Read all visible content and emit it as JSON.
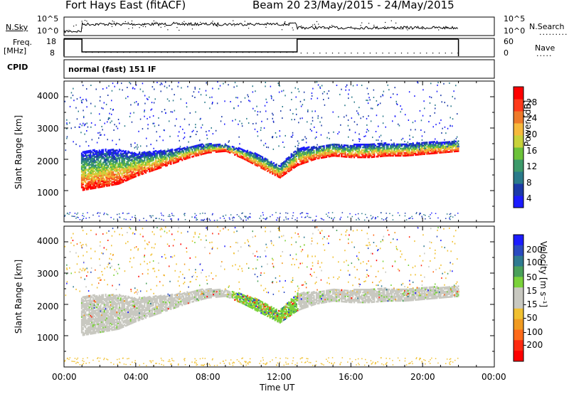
{
  "header": {
    "station": "Fort Hays East (fitACF)",
    "beam_date": "Beam 20  23/May/2015 - 24/May/2015"
  },
  "strips": {
    "nsky_label": "N.Sky",
    "nsky_ticks": [
      "10^5",
      "10^0"
    ],
    "nsearch_label": "N.Search",
    "nsearch_ticks": [
      "10^5",
      "10^0"
    ],
    "freq_label_1": "Freq.",
    "freq_label_2": "[MHz]",
    "freq_ticks": [
      "18",
      "8"
    ],
    "nave_label": "Nave",
    "nave_ticks": [
      "60",
      "0"
    ],
    "cpid_label": "CPID",
    "cpid_value": "normal (fast) 151 IF"
  },
  "panels": {
    "y_label": "Slant Range [km]",
    "y_ticks": [
      "4000",
      "3000",
      "2000",
      "1000"
    ],
    "x_ticks": [
      "00:00",
      "04:00",
      "08:00",
      "12:00",
      "16:00",
      "20:00",
      "00:00"
    ],
    "x_label": "Time UT"
  },
  "colorbars": {
    "power": {
      "label": "Power [dB]",
      "ticks": [
        "28",
        "24",
        "20",
        "16",
        "12",
        "8",
        "4"
      ],
      "colors": [
        "#1c1cff",
        "#1c3aa8",
        "#2a7a8a",
        "#3d9a6a",
        "#6cc23a",
        "#c8d23a",
        "#f6b93c",
        "#ee7a2a",
        "#ff3a1a",
        "#ff0000"
      ]
    },
    "velocity": {
      "label": "Velocity [m s⁻¹]",
      "ticks": [
        "200",
        "100",
        "50",
        "15",
        "-15",
        "-50",
        "-100",
        "-200"
      ],
      "colors": [
        "#1c1cff",
        "#2a4ac0",
        "#2f7a90",
        "#4aa05a",
        "#7ad23a",
        "#c8c8c0",
        "#c8c8c0",
        "#f0c030",
        "#f09a20",
        "#ff6a1a",
        "#ff2a10",
        "#ff0000"
      ]
    }
  },
  "chart_data": [
    {
      "type": "heatmap",
      "name": "power",
      "x_range_hours": [
        0,
        24
      ],
      "y_range_km": [
        0,
        4500
      ],
      "data_end_hour": 22,
      "dense_band": {
        "hours": [
          1.0,
          2.0,
          3.0,
          4.0,
          5.0,
          6.0,
          7.0,
          8.0,
          9.0,
          10.0,
          11.0,
          12.0,
          13.0,
          14.0,
          15.0,
          16.0,
          17.0,
          18.0,
          19.0,
          20.0,
          21.0,
          22.0
        ],
        "lower_km": [
          1000,
          1100,
          1200,
          1450,
          1650,
          1850,
          2050,
          2200,
          2250,
          2000,
          1700,
          1400,
          1800,
          2000,
          2100,
          2050,
          2050,
          2100,
          2100,
          2150,
          2200,
          2250
        ],
        "upper_km": [
          2250,
          2300,
          2300,
          2200,
          2250,
          2300,
          2400,
          2500,
          2450,
          2300,
          2100,
          1800,
          2350,
          2400,
          2500,
          2450,
          2500,
          2500,
          2500,
          2550,
          2550,
          2600
        ]
      },
      "power_db_range": [
        0,
        30
      ]
    },
    {
      "type": "heatmap",
      "name": "velocity",
      "x_range_hours": [
        0,
        24
      ],
      "y_range_km": [
        0,
        4500
      ],
      "data_end_hour": 22,
      "velocity_range": [
        -250,
        250
      ],
      "ground_scatter_color": "#c8c8c0"
    },
    {
      "type": "line",
      "name": "n_sky_search",
      "x_range_hours": [
        0,
        24
      ]
    },
    {
      "type": "line",
      "name": "frequency",
      "ylim": [
        8,
        18
      ],
      "x": [
        0,
        1,
        1,
        13,
        13,
        22
      ],
      "y": [
        18,
        18,
        10.5,
        10.5,
        18,
        18
      ]
    }
  ]
}
